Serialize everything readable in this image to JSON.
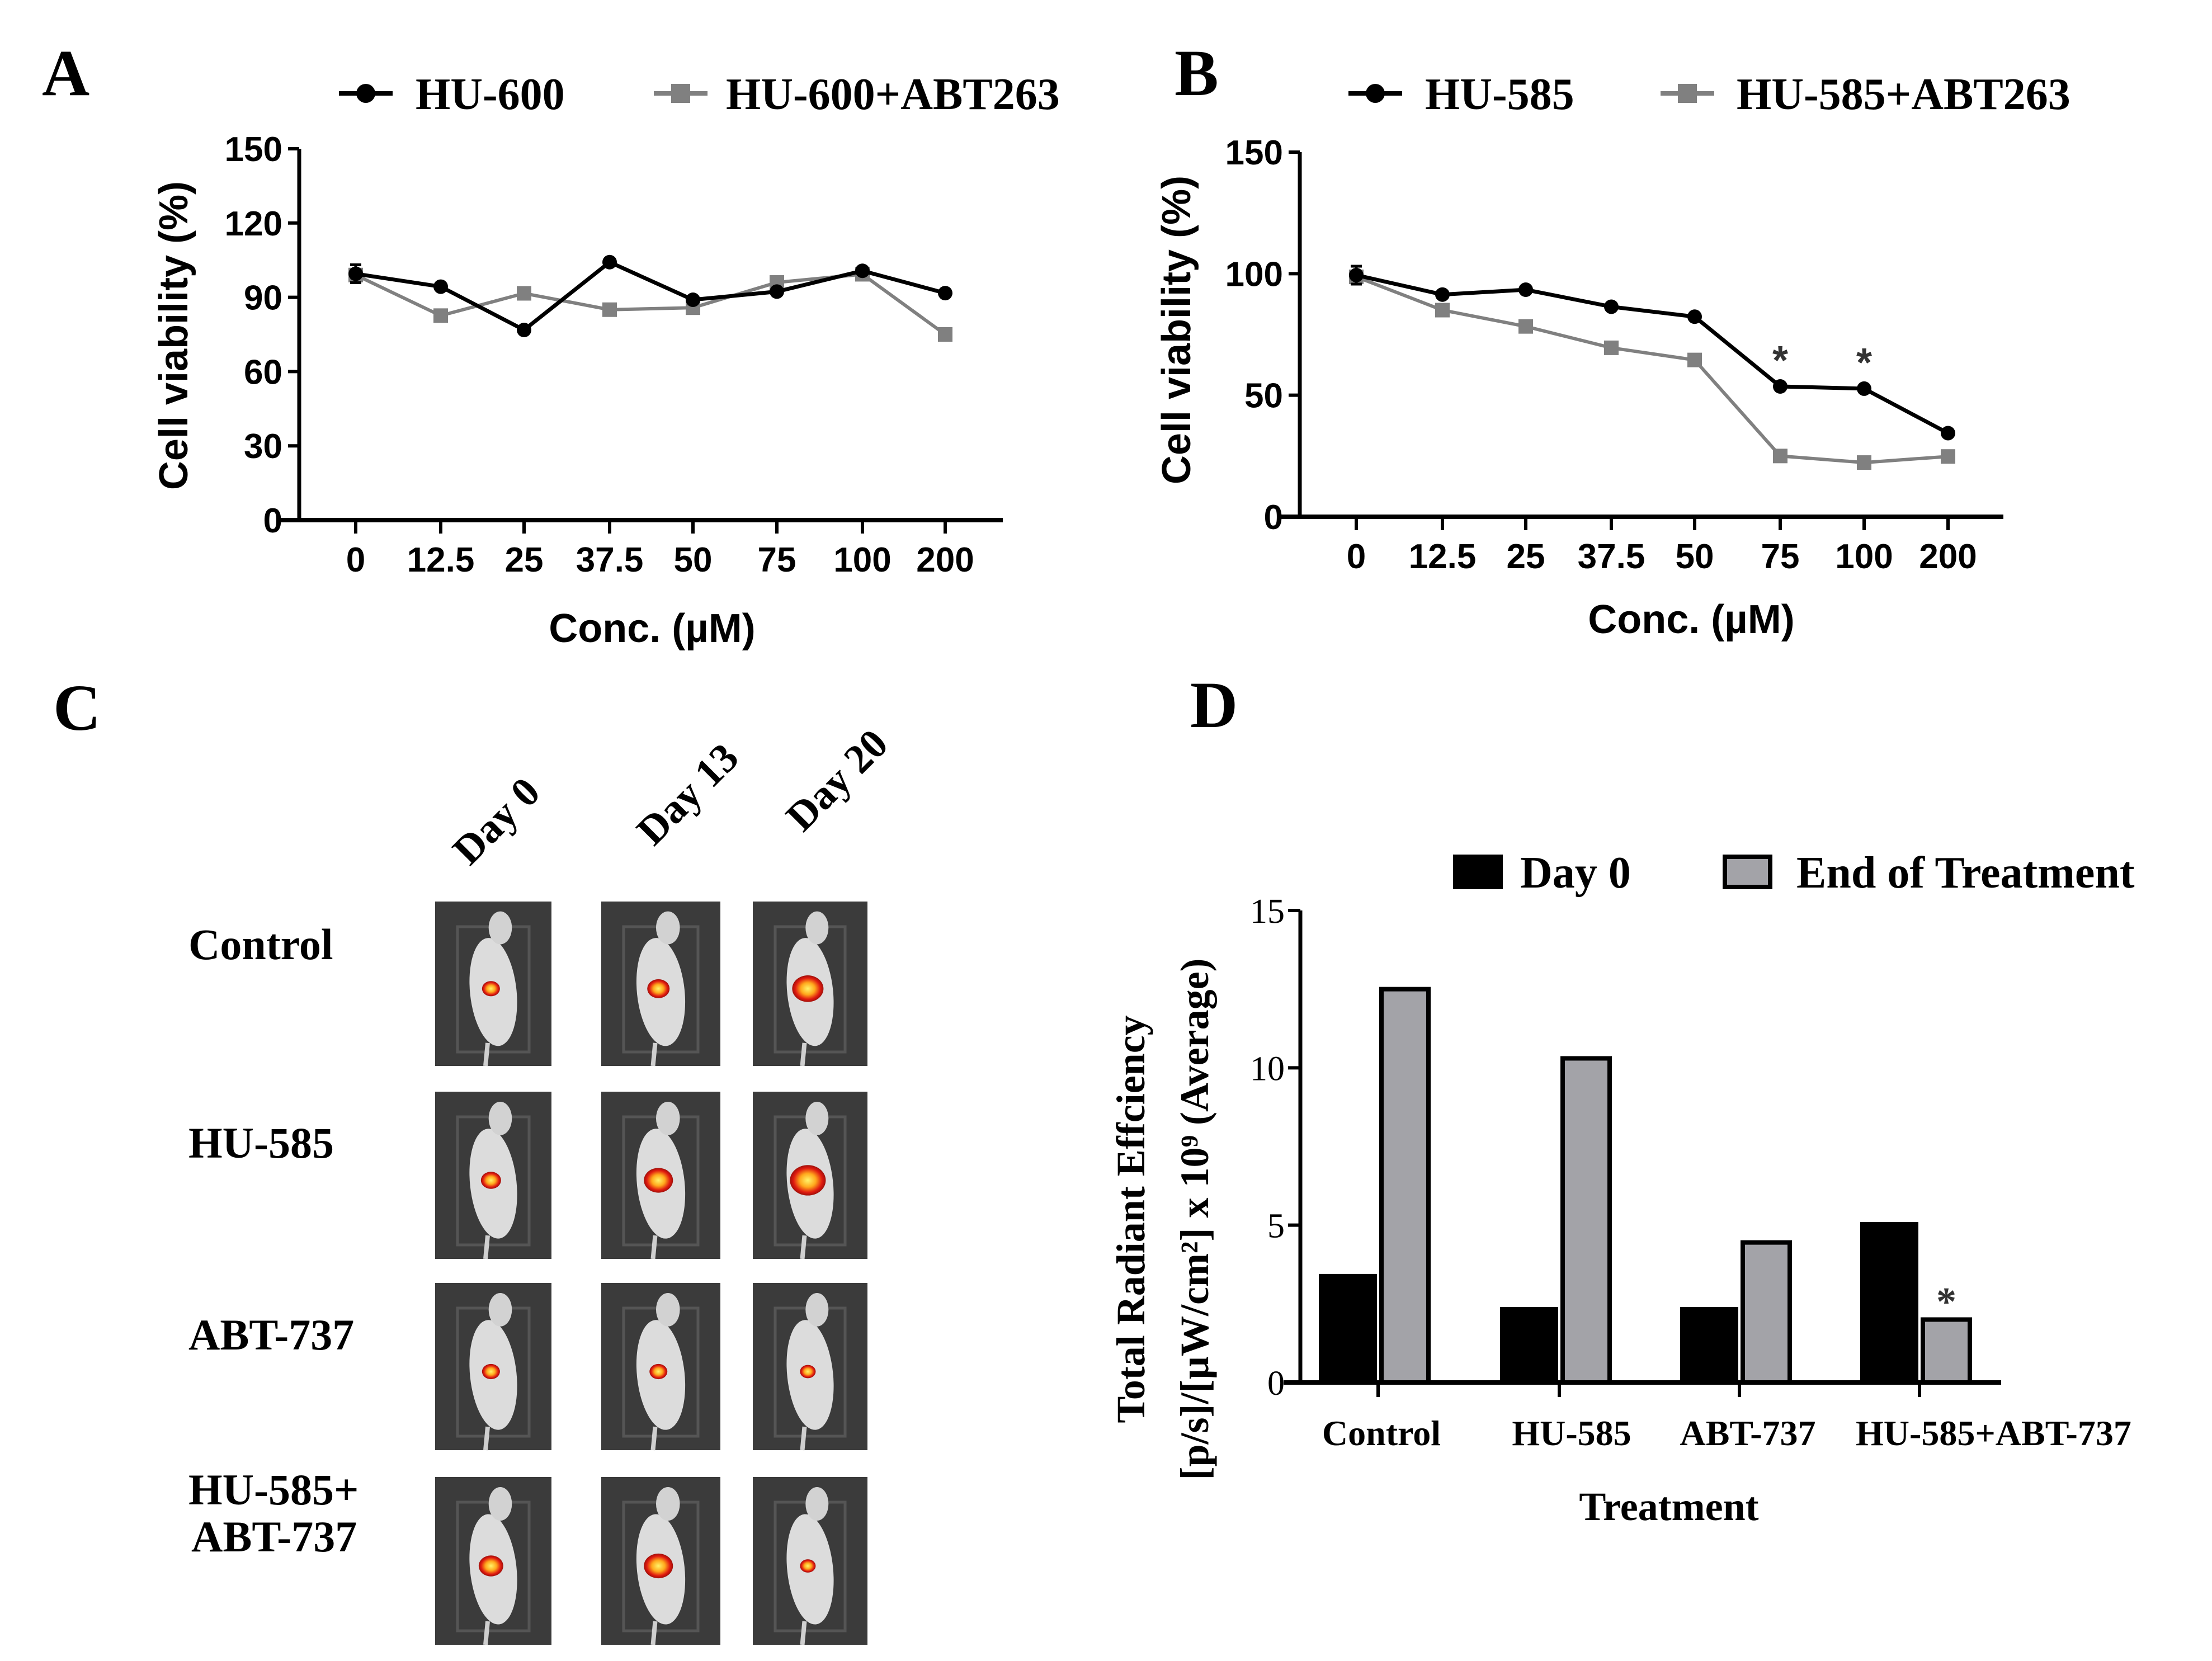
{
  "panel_letters": {
    "a": "A",
    "b": "B",
    "c": "C",
    "d": "D"
  },
  "chart_data": [
    {
      "panel": "A",
      "type": "line",
      "categories": [
        "0",
        "12.5",
        "25",
        "37.5",
        "50",
        "75",
        "100",
        "200"
      ],
      "series": [
        {
          "name": "HU-600",
          "color": "#000000",
          "marker": "circle",
          "values": [
            99.5,
            94.3,
            76.8,
            104.2,
            89,
            92.3,
            100.7,
            91.7
          ]
        },
        {
          "name": "HU-600+ABT263",
          "color": "#808080",
          "marker": "square",
          "values": [
            99,
            82.6,
            91.6,
            85,
            85.8,
            96,
            99.3,
            75
          ]
        }
      ],
      "xlabel": "Conc. (µM)",
      "ylabel": "Cell viability (%)",
      "ylim": [
        0,
        150
      ],
      "yticks": [
        "0",
        "30",
        "60",
        "90",
        "120",
        "150"
      ],
      "annotations": [],
      "legend": "top"
    },
    {
      "panel": "B",
      "type": "line",
      "categories": [
        "0",
        "12.5",
        "25",
        "37.5",
        "50",
        "75",
        "100",
        "200"
      ],
      "series": [
        {
          "name": "HU-585",
          "color": "#000000",
          "marker": "circle",
          "values": [
            99.4,
            91.4,
            93.4,
            86.4,
            82.3,
            53.6,
            52.7,
            34.4
          ]
        },
        {
          "name": "HU-585+ABT263",
          "color": "#808080",
          "marker": "square",
          "values": [
            98.7,
            85,
            78.3,
            69.5,
            64.5,
            25,
            22.3,
            24.8
          ]
        }
      ],
      "xlabel": "Conc. (µM)",
      "ylabel": "Cell viability (%)",
      "ylim": [
        0,
        150
      ],
      "yticks": [
        "0",
        "50",
        "100",
        "150"
      ],
      "annotations": [
        {
          "category": "75",
          "text": "*"
        },
        {
          "category": "100",
          "text": "*"
        }
      ],
      "legend": "top"
    },
    {
      "panel": "D",
      "type": "bar",
      "categories": [
        "Control",
        "HU-585",
        "ABT-737",
        "HU-585+ABT-737"
      ],
      "series": [
        {
          "name": "Day 0",
          "color": "#000000",
          "values": [
            3.45,
            2.4,
            2.4,
            5.1
          ]
        },
        {
          "name": "End of Treatment",
          "color": "#a3a3a8",
          "values": [
            12.5,
            10.3,
            4.45,
            2.0
          ]
        }
      ],
      "xlabel": "Treatment",
      "ylabel_lines": [
        "Total Radiant Effciency",
        "[p/s]/[µW/cm²] x 10⁹ (Average)"
      ],
      "ylim": [
        0,
        15
      ],
      "yticks": [
        "0",
        "5",
        "10",
        "15"
      ],
      "annotations": [
        {
          "category": "HU-585+ABT-737",
          "series": "End of Treatment",
          "text": "*"
        }
      ],
      "legend": "top-right"
    }
  ],
  "panel_c": {
    "days": [
      "Day 0",
      "Day 13",
      "Day 20"
    ],
    "rows": [
      {
        "line1": "Control",
        "line2": ""
      },
      {
        "line1": "HU-585",
        "line2": ""
      },
      {
        "line1": "ABT-737",
        "line2": ""
      },
      {
        "line1": "HU-585+",
        "line2": "ABT-737"
      }
    ]
  }
}
